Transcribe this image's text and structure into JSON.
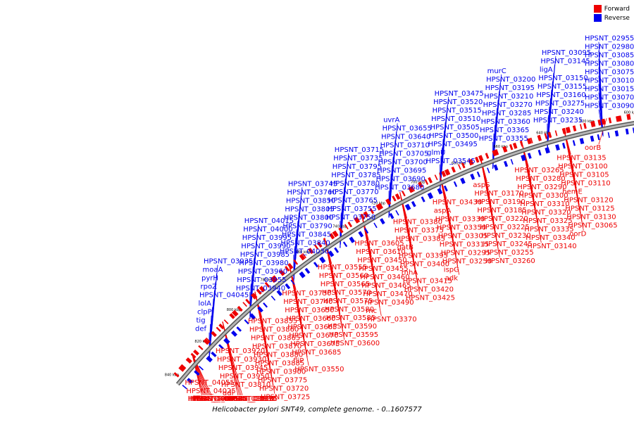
{
  "title": "Helicobacter pylori SNT49, complete genome. - 0..1607577",
  "legend": [
    {
      "label": "Forward",
      "color": "#ee0000"
    },
    {
      "label": "Reverse",
      "color": "#0000ee"
    }
  ],
  "colors": {
    "forward": "#ee0000",
    "reverse": "#0000ee",
    "backbone": "#999999"
  },
  "kbp_ticks": [
    "600 kbp",
    "620 kbp",
    "640 kbp",
    "660 kbp",
    "680 kbp",
    "700 kbp",
    "720 kbp",
    "740 kbp",
    "760 kbp",
    "780 kbp",
    "800 kbp",
    "820 kbp",
    "840 kbp"
  ],
  "reverse_labels": [
    "def",
    "tig",
    "clpP",
    "lolA",
    "HPSNT_04045",
    "rpoZ",
    "pyrH",
    "moaA",
    "HPSNT_03935",
    "HPSNT_03940",
    "HPSNT_03955",
    "HPSNT_03960",
    "HPSNT_03980",
    "HPSNT_03985",
    "HPSNT_03990",
    "HPSNT_03995",
    "HPSNT_04000",
    "HPSNT_04015",
    "HPSNT_04030",
    "HPSNT_03840",
    "HPSNT_03845",
    "HPSNT_03790",
    "HPSNT_03800",
    "HPSNT_03805",
    "HPSNT_03850",
    "HPSNT_03760",
    "HPSNT_03745",
    "HPSNT_03750",
    "HPSNT_03755",
    "HPSNT_03765",
    "HPSNT_03770",
    "HPSNT_03780",
    "HPSNT_03785",
    "HPSNT_03795",
    "HPSNT_03735",
    "HPSNT_03715",
    "HPSNT_03680",
    "HPSNT_03690",
    "HPSNT_03695",
    "HPSNT_03700",
    "HPSNT_03705",
    "HPSNT_03710",
    "HPSNT_03640",
    "HPSNT_03655",
    "uvrA",
    "HPSNT_03545",
    "glmU",
    "HPSNT_03495",
    "HPSNT_03500",
    "HPSNT_03505",
    "HPSNT_03510",
    "HPSNT_03515",
    "HPSNT_03520",
    "HPSNT_03475",
    "HPSNT_03355",
    "HPSNT_03365",
    "HPSNT_03360",
    "HPSNT_03285",
    "HPSNT_03270",
    "HPSNT_03210",
    "HPSNT_03195",
    "HPSNT_03200",
    "murC",
    "HPSNT_03235",
    "HPSNT_03240",
    "HPSNT_03275",
    "HPSNT_03160",
    "HPSNT_03155",
    "HPSNT_03150",
    "ligA",
    "HPSNT_03145",
    "HPSNT_03095",
    "HPSNT_03090",
    "HPSNT_03070",
    "HPSNT_03015",
    "HPSNT_03010",
    "HPSNT_03075",
    "HPSNT_03080",
    "HPSNT_03085",
    "HPSNT_02980",
    "HPSNT_02955"
  ],
  "forward_labels": [
    "HPSNT_04055",
    "HPSNT_04025",
    "HPSNT_04020",
    "HPSNT_04035",
    "HPSNT_04040",
    "flhB",
    "HPSNT_03970",
    "fliS",
    "fliD",
    "HPSNT_03875",
    "HPSNT_03920",
    "HPSNT_03930",
    "HPSNT_03945",
    "HPSNT_03950",
    "HPSNT_03810",
    "ddl",
    "HPSNT_03820",
    "HPSNT_03825",
    "HPSNT_03830",
    "HPSNT_03835",
    "HPSNT_03855",
    "HPSNT_03860",
    "HPSNT_03865",
    "HPSNT_03870",
    "HPSNT_03880",
    "HPSNT_03885",
    "HPSNT_03900",
    "HPSNT_03775",
    "HPSNT_03720",
    "HPSNT_03725",
    "HPSNT_03730",
    "HPSNT_03740",
    "HPSNT_03650",
    "HPSNT_03660",
    "HPSNT_03665",
    "HPSNT_03670",
    "HPSNT_03675",
    "HPSNT_03685",
    "fliP",
    "HPSNT_03550",
    "HPSNT_03555",
    "HPSNT_03560",
    "HPSNT_03565",
    "HPSNT_03570",
    "HPSNT_03575",
    "HPSNT_03580",
    "HPSNT_03585",
    "HPSNT_03590",
    "HPSNT_03595",
    "HPSNT_03600",
    "HPSNT_03605",
    "HPSNT_03610",
    "HPSNT_03450",
    "HPSNT_03455",
    "HPSNT_03460",
    "HPSNT_03465",
    "HPSNT_03470",
    "HPSNT_03490",
    "rnc",
    "HPSNT_03370",
    "HPSNT_03380",
    "HPSNT_03375",
    "HPSNT_03385",
    "gatB",
    "HPSNT_03395",
    "HPSNT_03400",
    "rnhA",
    "HPSNT_03415",
    "HPSNT_03420",
    "HPSNT_03425",
    "HPSNT_03430",
    "aspA",
    "HPSNT_03330",
    "HPSNT_03350",
    "HPSNT_03305",
    "HPSNT_03315",
    "HPSNT_03295",
    "HPSNT_03250",
    "ispG",
    "adk",
    "aspS",
    "HPSNT_03170",
    "HPSNT_03190",
    "HPSNT_03185",
    "HPSNT_03220",
    "HPSNT_03225",
    "HPSNT_03230",
    "HPSNT_03245",
    "HPSNT_03255",
    "HPSNT_03260",
    "HPSNT_03265",
    "HPSNT_03280",
    "HPSNT_03290",
    "HPSNT_03300",
    "HPSNT_03310",
    "HPSNT_03320",
    "HPSNT_03325",
    "HPSNT_03335",
    "HPSNT_03340",
    "HPSNT_03140",
    "HPSNT_03135",
    "HPSNT_03100",
    "HPSNT_03105",
    "HPSNT_03110",
    "hemE",
    "HPSNT_03120",
    "HPSNT_03125",
    "HPSNT_03130",
    "HPSNT_03065",
    "oorD",
    "oorB"
  ]
}
